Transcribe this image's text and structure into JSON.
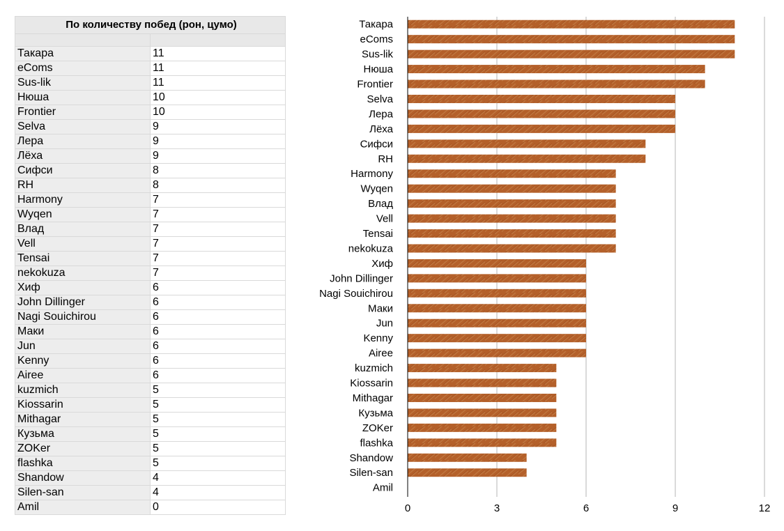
{
  "table": {
    "header": "По количеству побед (рон, цумо)",
    "rows": [
      {
        "name": "Такара",
        "wins": "11"
      },
      {
        "name": "eComs",
        "wins": "11"
      },
      {
        "name": "Sus-lik",
        "wins": "11"
      },
      {
        "name": "Нюша",
        "wins": "10"
      },
      {
        "name": "Frontier",
        "wins": "10"
      },
      {
        "name": "Selva",
        "wins": "9"
      },
      {
        "name": "Лера",
        "wins": "9"
      },
      {
        "name": "Лёха",
        "wins": "9"
      },
      {
        "name": "Сифси",
        "wins": "8"
      },
      {
        "name": "RH",
        "wins": "8"
      },
      {
        "name": "Harmony",
        "wins": "7"
      },
      {
        "name": "Wyqen",
        "wins": "7"
      },
      {
        "name": "Влад",
        "wins": "7"
      },
      {
        "name": "Vell",
        "wins": "7"
      },
      {
        "name": "Tensai",
        "wins": "7"
      },
      {
        "name": "nekokuza",
        "wins": "7"
      },
      {
        "name": "Хиф",
        "wins": "6"
      },
      {
        "name": "John Dillinger",
        "wins": "6"
      },
      {
        "name": "Nagi Souichirou",
        "wins": "6"
      },
      {
        "name": "Маки",
        "wins": "6"
      },
      {
        "name": "Jun",
        "wins": "6"
      },
      {
        "name": "Kenny",
        "wins": "6"
      },
      {
        "name": "Airee",
        "wins": "6"
      },
      {
        "name": "kuzmich",
        "wins": "5"
      },
      {
        "name": "Kiossarin",
        "wins": "5"
      },
      {
        "name": "Mithagar",
        "wins": "5"
      },
      {
        "name": "Кузьма",
        "wins": "5"
      },
      {
        "name": "ZOKer",
        "wins": "5"
      },
      {
        "name": "flashka",
        "wins": "5"
      },
      {
        "name": "Shandow",
        "wins": "4"
      },
      {
        "name": "Silen-san",
        "wins": "4"
      },
      {
        "name": "Amil",
        "wins": "0"
      }
    ]
  },
  "chart_data": {
    "type": "bar",
    "orientation": "horizontal",
    "title": "",
    "xlabel": "",
    "ylabel": "",
    "categories": [
      "Такара",
      "eComs",
      "Sus-lik",
      "Нюша",
      "Frontier",
      "Selva",
      "Лера",
      "Лёха",
      "Сифси",
      "RH",
      "Harmony",
      "Wyqen",
      "Влад",
      "Vell",
      "Tensai",
      "nekokuza",
      "Хиф",
      "John Dillinger",
      "Nagi Souichirou",
      "Маки",
      "Jun",
      "Kenny",
      "Airee",
      "kuzmich",
      "Kiossarin",
      "Mithagar",
      "Кузьма",
      "ZOKer",
      "flashka",
      "Shandow",
      "Silen-san",
      "Amil"
    ],
    "values": [
      11,
      11,
      11,
      10,
      10,
      9,
      9,
      9,
      8,
      8,
      7,
      7,
      7,
      7,
      7,
      7,
      6,
      6,
      6,
      6,
      6,
      6,
      6,
      5,
      5,
      5,
      5,
      5,
      5,
      4,
      4,
      0
    ],
    "xlim": [
      0,
      12
    ],
    "xticks": [
      "0",
      "3",
      "6",
      "9",
      "12"
    ],
    "grid": true,
    "legend": "none",
    "bar_color": "#b8622a"
  }
}
